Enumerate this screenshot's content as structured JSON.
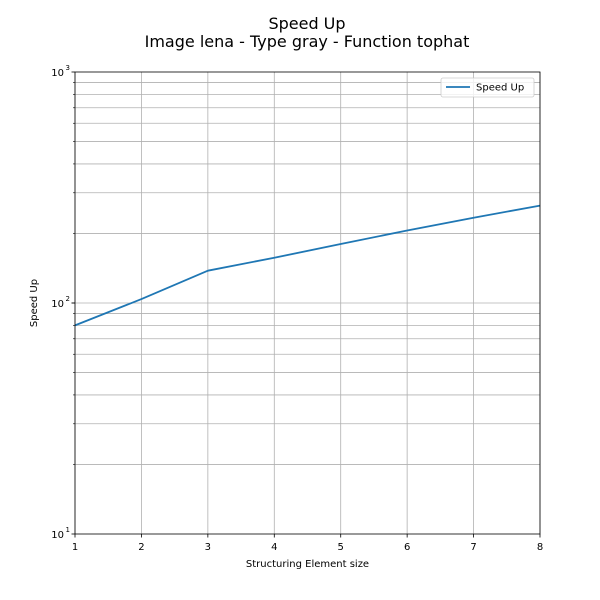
{
  "chart_data": {
    "type": "line",
    "title": "Speed Up",
    "subtitle": "Image lena - Type gray - Function tophat",
    "xlabel": "Structuring Element size",
    "ylabel": "Speed Up",
    "x": [
      1,
      2,
      3,
      4,
      5,
      6,
      7,
      8
    ],
    "xlim": [
      1,
      8
    ],
    "ylim": [
      10,
      1000
    ],
    "yscale": "log",
    "x_ticks": [
      "1",
      "2",
      "3",
      "4",
      "5",
      "6",
      "7",
      "8"
    ],
    "y_ticks": [
      {
        "value": 10,
        "base": "10",
        "exp": "1"
      },
      {
        "value": 100,
        "base": "10",
        "exp": "2"
      },
      {
        "value": 1000,
        "base": "10",
        "exp": "3"
      }
    ],
    "grid": true,
    "legend_position": "top-right",
    "series": [
      {
        "name": "Speed Up",
        "color": "#1f77b4",
        "values": [
          80,
          104,
          138,
          157,
          180,
          206,
          234,
          264
        ]
      }
    ]
  }
}
